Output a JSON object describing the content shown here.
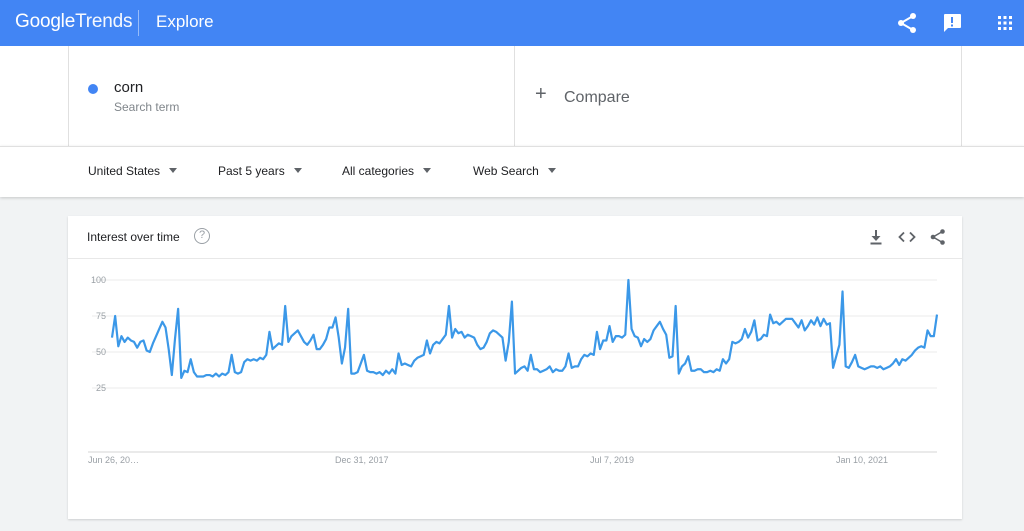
{
  "header": {
    "logo_google": "Google",
    "logo_trends": "Trends",
    "title": "Explore",
    "icons": [
      "share-icon",
      "feedback-icon",
      "apps-grid-icon"
    ]
  },
  "search": {
    "term": "corn",
    "term_type": "Search term",
    "term_color": "#4285f4",
    "compare_label": "Compare"
  },
  "filters": {
    "region": "United States",
    "time": "Past 5 years",
    "category": "All categories",
    "property": "Web Search"
  },
  "card": {
    "title": "Interest over time",
    "help": "?",
    "icons": [
      "download-icon",
      "embed-icon",
      "share-icon"
    ]
  },
  "chart_data": {
    "type": "line",
    "title": "",
    "xlabel": "",
    "ylabel": "",
    "ylim": [
      0,
      100
    ],
    "y_ticks": [
      25,
      50,
      75,
      100
    ],
    "x_tick_labels": [
      "Jun 26, 20…",
      "Dec 31, 2017",
      "Jul 7, 2019",
      "Jan 10, 2021"
    ],
    "grid": true,
    "legend": "none",
    "series": [
      {
        "color": "#3b98e8",
        "values": [
          60,
          75,
          54,
          61,
          57,
          60,
          58,
          57,
          53,
          57,
          58,
          51,
          50,
          56,
          61,
          66,
          71,
          67,
          52,
          34,
          59,
          80,
          32,
          37,
          36,
          45,
          36,
          33,
          33,
          33,
          34,
          34,
          33,
          35,
          33,
          35,
          34,
          36,
          48,
          36,
          35,
          36,
          43,
          45,
          44,
          45,
          44,
          46,
          45,
          48,
          64,
          52,
          54,
          56,
          55,
          82,
          57,
          61,
          63,
          65,
          61,
          57,
          55,
          58,
          62,
          52,
          52,
          55,
          59,
          67,
          67,
          74,
          60,
          42,
          53,
          80,
          35,
          35,
          36,
          42,
          48,
          37,
          36,
          36,
          35,
          36,
          34,
          37,
          35,
          38,
          35,
          49,
          41,
          42,
          41,
          40,
          44,
          46,
          47,
          48,
          58,
          49,
          55,
          57,
          56,
          59,
          62,
          82,
          60,
          66,
          63,
          64,
          60,
          62,
          61,
          60,
          55,
          52,
          53,
          57,
          63,
          65,
          64,
          62,
          60,
          44,
          57,
          85,
          35,
          37,
          39,
          40,
          37,
          48,
          38,
          38,
          36,
          37,
          38,
          40,
          36,
          38,
          37,
          37,
          40,
          49,
          39,
          40,
          40,
          45,
          48,
          47,
          49,
          48,
          64,
          52,
          58,
          58,
          68,
          57,
          61,
          61,
          60,
          62,
          100,
          66,
          61,
          60,
          54,
          59,
          57,
          59,
          65,
          68,
          71,
          66,
          62,
          46,
          47,
          82,
          35,
          40,
          42,
          47,
          37,
          37,
          38,
          38,
          36,
          36,
          37,
          36,
          38,
          37,
          45,
          42,
          45,
          57,
          56,
          57,
          59,
          66,
          60,
          64,
          72,
          58,
          59,
          62,
          61,
          76,
          70,
          71,
          69,
          71,
          73,
          73,
          73,
          70,
          67,
          72,
          65,
          68,
          72,
          69,
          74,
          68,
          73,
          69,
          70,
          39,
          47,
          55,
          92,
          40,
          39,
          43,
          48,
          40,
          39,
          38,
          39,
          40,
          40,
          39,
          40,
          38,
          39,
          40,
          42,
          45,
          41,
          45,
          44,
          46,
          48,
          51,
          53,
          54,
          53,
          65,
          61,
          61,
          76
        ]
      }
    ]
  }
}
